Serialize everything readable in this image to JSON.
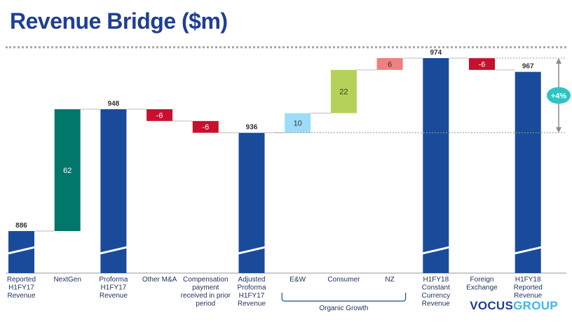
{
  "title": "Revenue Bridge ($m)",
  "logo": {
    "part1": "VOCUS",
    "part2": "GROUP"
  },
  "chart_data": {
    "type": "waterfall",
    "title": "Revenue Bridge ($m)",
    "group_label": "Organic Growth",
    "delta_badge": "+4%",
    "steps": [
      {
        "category": "Reported\nH1FY17\nRevenue",
        "kind": "total",
        "value": 886,
        "color": "#1a4b9b",
        "label": "886",
        "broken": true
      },
      {
        "category": "NextGen",
        "kind": "delta",
        "value": 62,
        "color": "#00776a",
        "label": "62"
      },
      {
        "category": "Proforma\nH1FY17\nRevenue",
        "kind": "total",
        "value": 948,
        "color": "#1a4b9b",
        "label": "948",
        "broken": true
      },
      {
        "category": "Other M&A",
        "kind": "delta",
        "value": -6,
        "color": "#c8102e",
        "label": "-6"
      },
      {
        "category": "Compensation\npayment\nreceived in prior\nperiod",
        "kind": "delta",
        "value": -6,
        "color": "#c8102e",
        "label": "-6"
      },
      {
        "category": "Adjusted\nProforma\nH1FY17\nRevenue",
        "kind": "total",
        "value": 936,
        "color": "#1a4b9b",
        "label": "936",
        "broken": true
      },
      {
        "category": "E&W",
        "kind": "delta",
        "value": 10,
        "color": "#9ddcf9",
        "label": "10"
      },
      {
        "category": "Consumer",
        "kind": "delta",
        "value": 22,
        "color": "#b5d15a",
        "label": "22"
      },
      {
        "category": "NZ",
        "kind": "delta",
        "value": 6,
        "color": "#f07f7f",
        "label": "6"
      },
      {
        "category": "H1FY18\nConstant\nCurrency\nRevenue",
        "kind": "total",
        "value": 974,
        "color": "#1a4b9b",
        "label": "974",
        "broken": true
      },
      {
        "category": "Foreign\nExchange",
        "kind": "delta",
        "value": -6,
        "color": "#c8102e",
        "label": "-6"
      },
      {
        "category": "H1FY18\nReported\nRevenue",
        "kind": "total",
        "value": 967,
        "color": "#1a4b9b",
        "label": "967",
        "broken": true
      }
    ],
    "colors": {
      "total": "#1a4b9b",
      "negative": "#c8102e",
      "connector": "#bdbdbd",
      "badge": "#2ec4c4",
      "axis": "#999999"
    }
  }
}
